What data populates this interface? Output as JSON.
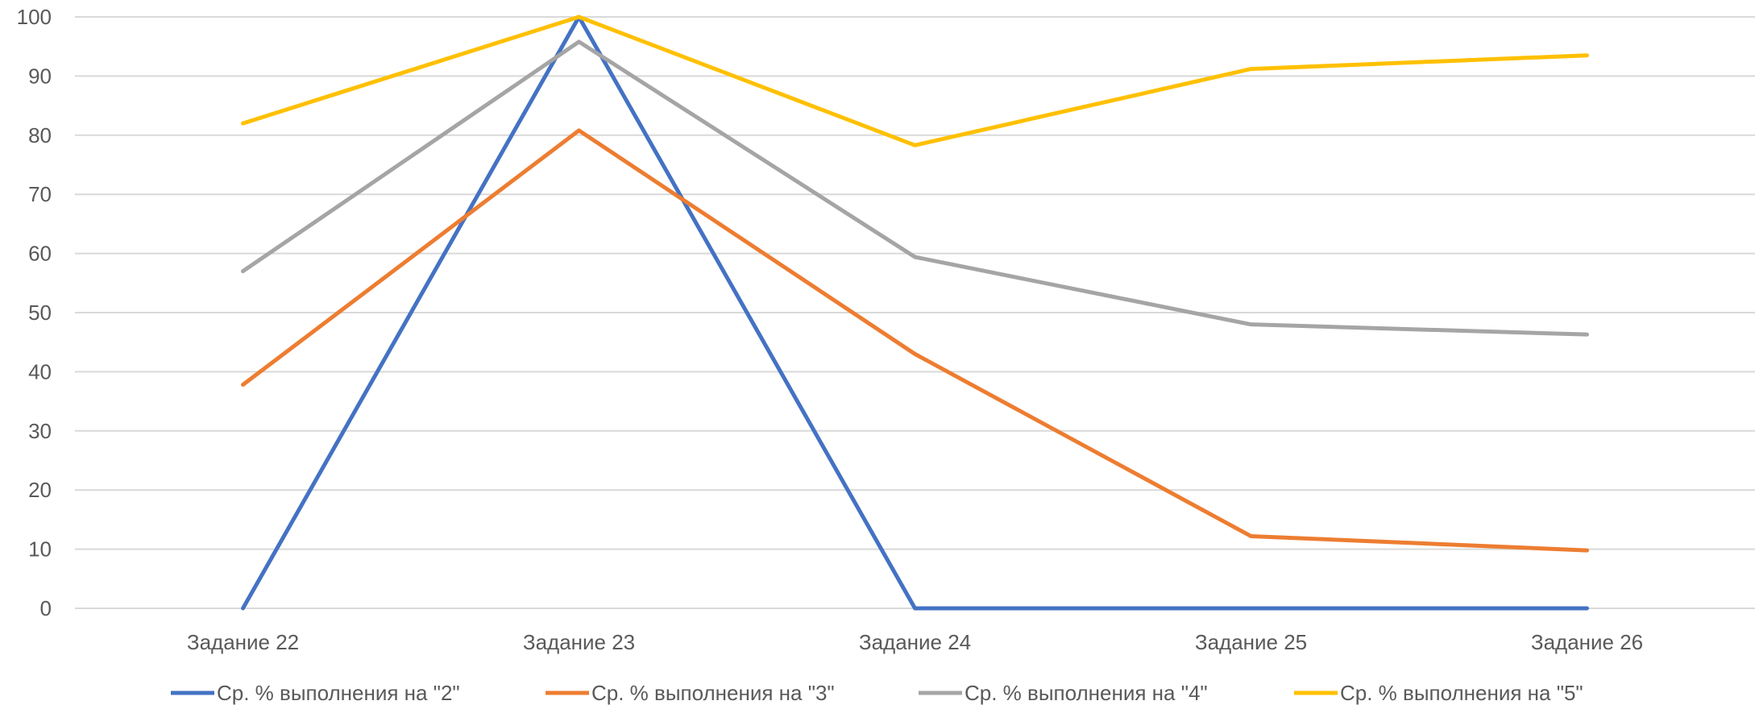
{
  "chart_data": {
    "type": "line",
    "title": "",
    "xlabel": "",
    "ylabel": "",
    "categories": [
      "Задание 22",
      "Задание 23",
      "Задание 24",
      "Задание 25",
      "Задание 26"
    ],
    "ylim": [
      0,
      100
    ],
    "yticks": [
      0,
      10,
      20,
      30,
      40,
      50,
      60,
      70,
      80,
      90,
      100
    ],
    "grid": true,
    "legend_position": "bottom",
    "series": [
      {
        "name": "Ср. % выполнения на \"2\"",
        "color": "#4472C4",
        "values": [
          0,
          100,
          0,
          0,
          0
        ]
      },
      {
        "name": "Ср. % выполнения на \"3\"",
        "color": "#ED7D31",
        "values": [
          37.8,
          80.8,
          43,
          12.2,
          9.8
        ]
      },
      {
        "name": "Ср. % выполнения на \"4\"",
        "color": "#A5A5A5",
        "values": [
          57,
          95.8,
          59.4,
          48,
          46.3
        ]
      },
      {
        "name": "Ср. % выполнения на \"5\"",
        "color": "#FFC000",
        "values": [
          82,
          100,
          78.3,
          91.2,
          93.5
        ]
      }
    ]
  }
}
